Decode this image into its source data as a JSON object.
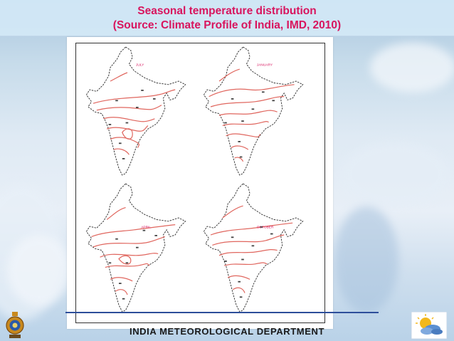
{
  "slide": {
    "title_line1": "Seasonal temperature distribution",
    "title_line2": "(Source: Climate Profile of India, IMD, 2010)",
    "footer": "INDIA METEOROLOGICAL DEPARTMENT"
  },
  "maps": [
    {
      "month": "JULY"
    },
    {
      "month": "JANUARY"
    },
    {
      "month": "APRIL"
    },
    {
      "month": "OCTOBER"
    }
  ],
  "colors": {
    "title": "#d8155e",
    "isotherm": "#e0665e",
    "footer_rule": "#2d4e9a"
  },
  "icons": {
    "left_logo": "imd-emblem-icon",
    "right_logo": "weather-sun-cloud-icon"
  }
}
